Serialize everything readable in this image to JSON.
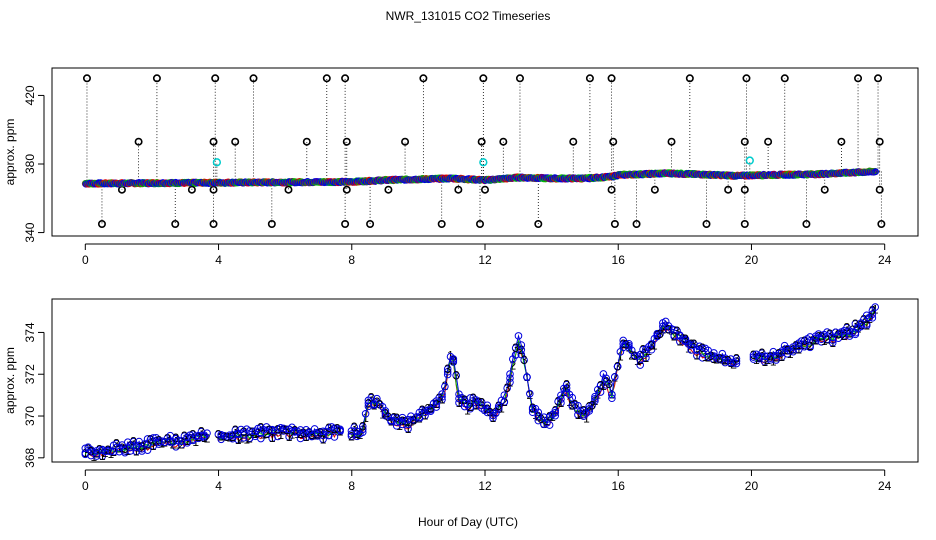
{
  "title": "NWR_131015  CO2 Timeseries",
  "xlabel": "Hour of Day (UTC)",
  "chart_data": [
    {
      "type": "scatter",
      "name": "raw-flagged-timeseries",
      "ylabel": "approx. ppm",
      "xlim": [
        -1,
        25
      ],
      "ylim": [
        338,
        436
      ],
      "xticks": [
        0,
        4,
        8,
        12,
        16,
        20,
        24
      ],
      "yticks": [
        340,
        380,
        420
      ],
      "ytick_labels": [
        "340",
        "380",
        "420"
      ],
      "xtick_labels": [
        "0",
        "4",
        "8",
        "12",
        "16",
        "20",
        "24"
      ],
      "baseline": [
        [
          0,
          368
        ],
        [
          4,
          368.5
        ],
        [
          8,
          369
        ],
        [
          9,
          370
        ],
        [
          11,
          371
        ],
        [
          12,
          370
        ],
        [
          13,
          371.5
        ],
        [
          14,
          371
        ],
        [
          15,
          371
        ],
        [
          15.8,
          372
        ],
        [
          16,
          373
        ],
        [
          17.5,
          374
        ],
        [
          19.6,
          372.5
        ],
        [
          20,
          372.8
        ],
        [
          22,
          373.5
        ],
        [
          23.7,
          375
        ]
      ],
      "high_outliers": [
        0.05,
        2.15,
        3.9,
        5.05,
        7.25,
        7.8,
        10.15,
        11.95,
        13.05,
        15.15,
        15.8,
        18.15,
        19.85,
        21.0,
        23.2,
        23.8
      ],
      "high_outlier_value": 430,
      "mid_outliers": [
        1.6,
        3.85,
        4.5,
        6.65,
        7.85,
        9.6,
        11.9,
        12.55,
        14.65,
        15.85,
        17.6,
        19.8,
        20.5,
        22.7,
        23.85
      ],
      "mid_outlier_value": 393,
      "low_outliers": [
        0.5,
        2.7,
        3.85,
        5.6,
        7.8,
        8.55,
        10.7,
        11.85,
        13.6,
        15.9,
        16.55,
        18.65,
        19.8,
        21.65,
        23.9
      ],
      "low_outlier_value": 345,
      "dip_outliers": [
        1.1,
        3.2,
        3.85,
        6.1,
        7.85,
        9.1,
        11.2,
        12.0,
        15.8,
        17.1,
        19.3,
        19.8,
        22.2,
        23.85
      ],
      "dip_outlier_value": 365,
      "cyan_points": [
        [
          3.95,
          381
        ],
        [
          11.95,
          381
        ],
        [
          19.95,
          382
        ]
      ]
    },
    {
      "type": "line",
      "name": "smoothed-timeseries",
      "ylabel": "approx. ppm",
      "xlim": [
        -1,
        25
      ],
      "ylim": [
        367.8,
        375.6
      ],
      "xticks": [
        0,
        4,
        8,
        12,
        16,
        20,
        24
      ],
      "yticks": [
        368,
        370,
        372,
        374
      ],
      "ytick_labels": [
        "368",
        "370",
        "372",
        "374"
      ],
      "xtick_labels": [
        "0",
        "4",
        "8",
        "12",
        "16",
        "20",
        "24"
      ],
      "anchors": [
        [
          0.0,
          368.3
        ],
        [
          0.5,
          368.3
        ],
        [
          1.0,
          368.4
        ],
        [
          1.5,
          368.5
        ],
        [
          2.0,
          368.7
        ],
        [
          2.5,
          368.8
        ],
        [
          3.0,
          368.8
        ],
        [
          3.5,
          369.0
        ],
        [
          3.7,
          369.1
        ],
        [
          4.0,
          369.0
        ],
        [
          5.0,
          369.1
        ],
        [
          6.0,
          369.3
        ],
        [
          6.5,
          369.2
        ],
        [
          7.0,
          369.1
        ],
        [
          7.6,
          369.3
        ],
        [
          8.0,
          369.2
        ],
        [
          8.3,
          369.1
        ],
        [
          8.5,
          370.6
        ],
        [
          8.8,
          370.6
        ],
        [
          9.2,
          369.8
        ],
        [
          9.6,
          369.6
        ],
        [
          10.0,
          369.9
        ],
        [
          10.3,
          370.3
        ],
        [
          10.6,
          370.8
        ],
        [
          10.8,
          371.3
        ],
        [
          11.0,
          373.2
        ],
        [
          11.2,
          370.9
        ],
        [
          11.5,
          370.5
        ],
        [
          11.7,
          370.8
        ],
        [
          12.0,
          370.3
        ],
        [
          12.3,
          370.0
        ],
        [
          12.6,
          370.8
        ],
        [
          13.0,
          373.6
        ],
        [
          13.2,
          372.5
        ],
        [
          13.4,
          370.4
        ],
        [
          13.8,
          369.6
        ],
        [
          14.1,
          370.1
        ],
        [
          14.4,
          371.4
        ],
        [
          14.7,
          370.3
        ],
        [
          15.0,
          370.0
        ],
        [
          15.3,
          370.7
        ],
        [
          15.6,
          371.9
        ],
        [
          15.8,
          370.9
        ],
        [
          16.1,
          373.4
        ],
        [
          16.3,
          373.3
        ],
        [
          16.6,
          372.6
        ],
        [
          17.0,
          373.4
        ],
        [
          17.4,
          374.3
        ],
        [
          17.8,
          373.8
        ],
        [
          18.4,
          373.1
        ],
        [
          19.0,
          372.8
        ],
        [
          19.6,
          372.5
        ],
        [
          20.0,
          372.8
        ],
        [
          20.5,
          372.8
        ],
        [
          21.0,
          373.1
        ],
        [
          21.5,
          373.3
        ],
        [
          22.0,
          373.7
        ],
        [
          22.5,
          373.8
        ],
        [
          23.0,
          374.0
        ],
        [
          23.5,
          374.6
        ],
        [
          23.75,
          375.2
        ]
      ],
      "series": [
        {
          "name": "1",
          "color": "#dd0000"
        },
        {
          "name": "2",
          "color": "#00bb00"
        },
        {
          "name": "3",
          "color": "#0000dd"
        }
      ]
    }
  ]
}
